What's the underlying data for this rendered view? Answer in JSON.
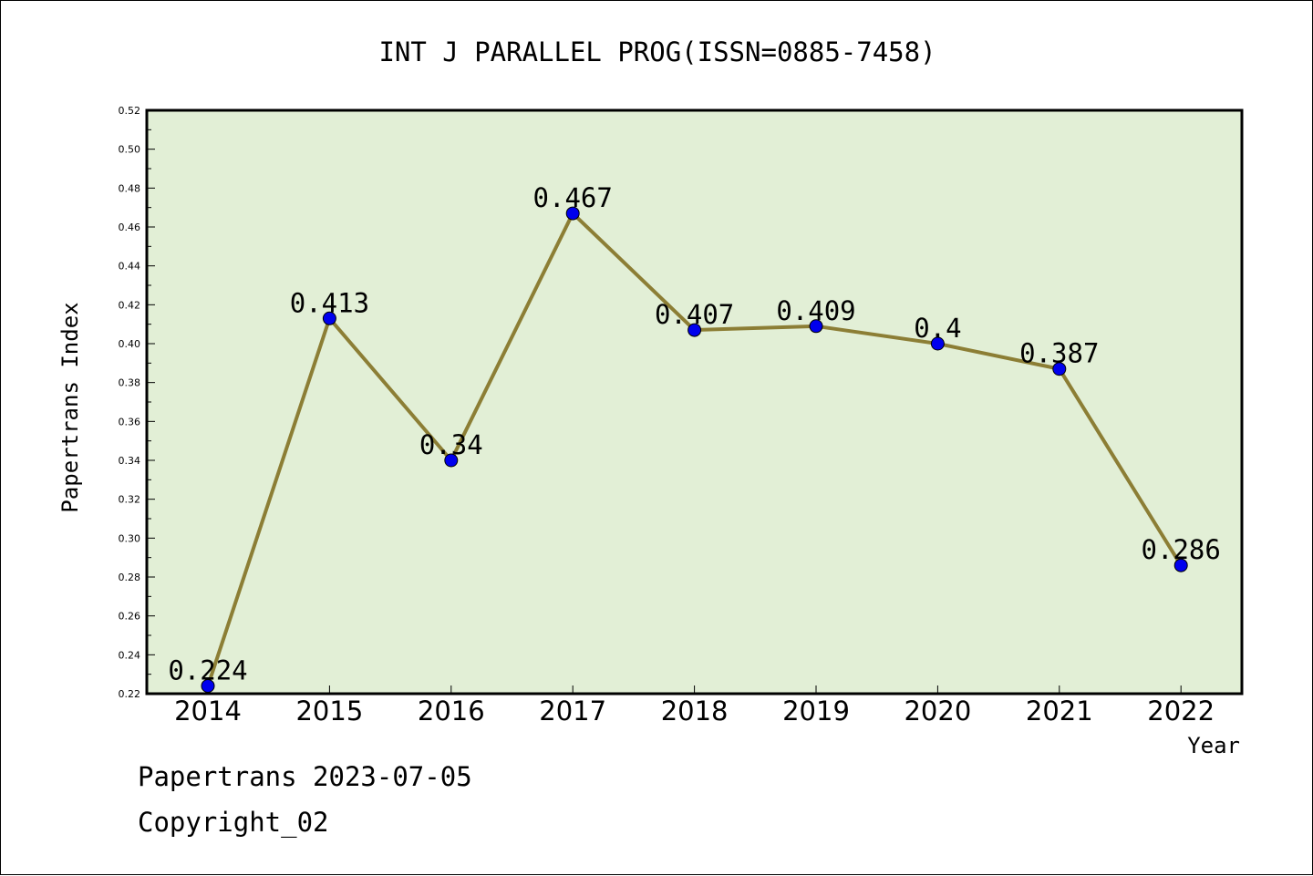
{
  "chart_data": {
    "type": "line",
    "title": "INT J PARALLEL PROG(ISSN=0885-7458)",
    "xlabel": "Year",
    "ylabel": "Papertrans Index",
    "categories": [
      "2014",
      "2015",
      "2016",
      "2017",
      "2018",
      "2019",
      "2020",
      "2021",
      "2022"
    ],
    "series": [
      {
        "values": [
          0.224,
          0.413,
          0.34,
          0.467,
          0.407,
          0.409,
          0.4,
          0.387,
          0.286
        ],
        "labels": [
          "0.224",
          "0.413",
          "0.34",
          "0.467",
          "0.407",
          "0.409",
          "0.4",
          "0.387",
          "0.286"
        ]
      }
    ],
    "ylim": [
      0.22,
      0.52
    ],
    "yticks": [
      "0.22",
      "0.24",
      "0.26",
      "0.28",
      "0.30",
      "0.32",
      "0.34",
      "0.36",
      "0.38",
      "0.40",
      "0.42",
      "0.44",
      "0.46",
      "0.48",
      "0.50",
      "0.52"
    ],
    "grid": false,
    "colors": {
      "plot_background": "#e2efd6",
      "line": "#8c7e35",
      "marker": "#0000ee"
    }
  },
  "footer": {
    "date_text": "Papertrans 2023-07-05",
    "copyright_text": "Copyright_02"
  }
}
